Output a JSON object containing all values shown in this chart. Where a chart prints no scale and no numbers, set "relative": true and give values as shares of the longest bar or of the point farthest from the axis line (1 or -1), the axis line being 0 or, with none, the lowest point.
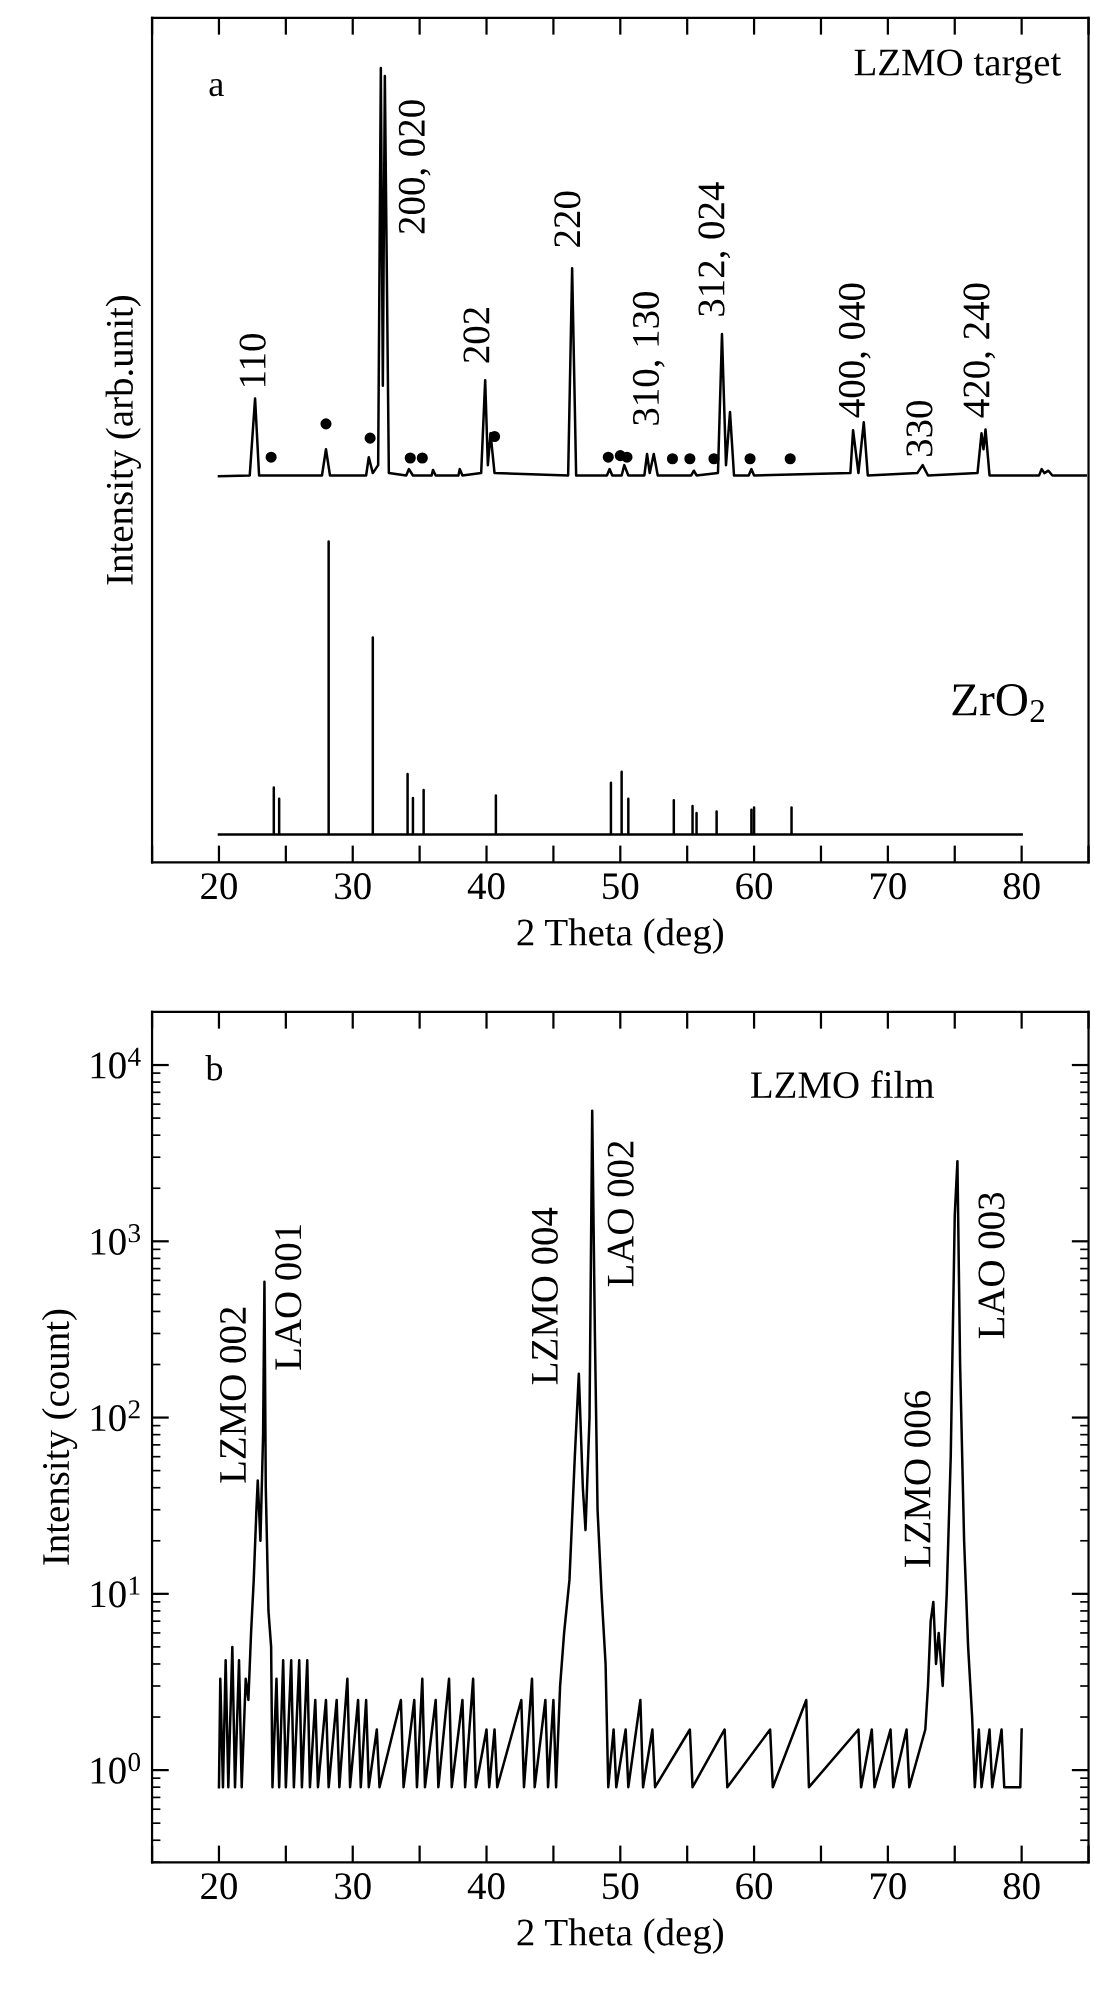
{
  "chart_data": [
    {
      "type": "line",
      "relative": true,
      "xlabel": "2 Theta (deg)",
      "ylabel": "Intensity (arb.unit)",
      "tick_labels": "x",
      "xlim": [
        15,
        85
      ],
      "xticks": [
        {
          "value": 15,
          "label": null
        },
        20,
        {
          "value": 25,
          "label": null
        },
        30,
        {
          "value": 35,
          "label": null
        },
        40,
        {
          "value": 45,
          "label": null
        },
        50,
        {
          "value": 55,
          "label": null
        },
        60,
        {
          "value": 65,
          "label": null
        },
        70,
        {
          "value": 75,
          "label": null
        },
        80,
        {
          "value": 85,
          "label": null
        }
      ],
      "series": [
        {
          "color": "#000000",
          "x": [
            20,
            22.3,
            22.7,
            23.0,
            27.7,
            28.0,
            28.3,
            31.0,
            31.2,
            31.5,
            31.9,
            32.1,
            32.25,
            32.4,
            32.7,
            34.0,
            34.2,
            34.5,
            35.9,
            36.0,
            36.2,
            37.9,
            38.0,
            38.2,
            39.6,
            39.9,
            40.1,
            40.3,
            40.6,
            46.1,
            46.4,
            46.7,
            49.0,
            49.2,
            49.4,
            50.1,
            50.3,
            50.6,
            51.8,
            52.0,
            52.2,
            52.5,
            52.8,
            55.3,
            55.5,
            55.7,
            57.3,
            57.6,
            57.9,
            58.2,
            58.5,
            59.6,
            59.8,
            60.0,
            67.2,
            67.4,
            67.8,
            68.2,
            68.5,
            72.2,
            72.6,
            73.0,
            76.7,
            77.0,
            77.15,
            77.3,
            77.6,
            81.3,
            81.5,
            81.7,
            82.0,
            82.3,
            84.8
          ],
          "values": [
            0.486,
            0.487,
            0.584,
            0.487,
            0.487,
            0.52,
            0.487,
            0.487,
            0.51,
            0.49,
            0.5,
            1.0,
            0.6,
            0.99,
            0.49,
            0.487,
            0.495,
            0.487,
            0.487,
            0.494,
            0.487,
            0.487,
            0.495,
            0.487,
            0.49,
            0.607,
            0.5,
            0.54,
            0.49,
            0.487,
            0.748,
            0.487,
            0.487,
            0.495,
            0.487,
            0.487,
            0.5,
            0.487,
            0.487,
            0.514,
            0.49,
            0.514,
            0.487,
            0.487,
            0.493,
            0.487,
            0.49,
            0.665,
            0.5,
            0.567,
            0.487,
            0.487,
            0.495,
            0.487,
            0.49,
            0.544,
            0.49,
            0.554,
            0.487,
            0.49,
            0.5,
            0.487,
            0.49,
            0.54,
            0.52,
            0.545,
            0.487,
            0.487,
            0.495,
            0.49,
            0.493,
            0.487,
            0.487
          ]
        },
        {
          "type": "scatter",
          "color": "#000000",
          "marker": "circle",
          "x": [
            23.9,
            28.0,
            31.3,
            34.3,
            35.2,
            40.6,
            49.1,
            50.0,
            50.5,
            53.9,
            55.2,
            57.0,
            59.7,
            62.7
          ],
          "values": [
            0.51,
            0.552,
            0.534,
            0.509,
            0.509,
            0.536,
            0.51,
            0.512,
            0.51,
            0.508,
            0.508,
            0.508,
            0.508,
            0.508
          ]
        },
        {
          "color": "#000000",
          "x": [
            20,
            24.1,
            24.1,
            24.1,
            24.5,
            24.5,
            24.5,
            28.2,
            28.2,
            28.2,
            31.5,
            31.5,
            31.5,
            34.1,
            34.1,
            34.1,
            34.5,
            34.5,
            34.5,
            35.3,
            35.3,
            35.3,
            40.7,
            40.7,
            40.7,
            49.3,
            49.3,
            49.3,
            50.1,
            50.1,
            50.1,
            50.6,
            50.6,
            50.6,
            54.0,
            54.0,
            54.0,
            55.4,
            55.4,
            55.4,
            55.7,
            55.7,
            55.7,
            57.2,
            57.2,
            57.2,
            59.8,
            59.8,
            59.8,
            60.0,
            60.0,
            60.0,
            62.8,
            62.8,
            62.8,
            80
          ],
          "values": [
            0.035,
            0.035,
            0.094,
            0.035,
            0.035,
            0.08,
            0.035,
            0.035,
            0.404,
            0.035,
            0.035,
            0.283,
            0.035,
            0.035,
            0.111,
            0.035,
            0.035,
            0.081,
            0.035,
            0.035,
            0.091,
            0.035,
            0.035,
            0.084,
            0.035,
            0.035,
            0.1,
            0.035,
            0.035,
            0.114,
            0.035,
            0.035,
            0.08,
            0.035,
            0.035,
            0.078,
            0.035,
            0.035,
            0.071,
            0.035,
            0.035,
            0.062,
            0.035,
            0.035,
            0.064,
            0.035,
            0.035,
            0.066,
            0.035,
            0.035,
            0.069,
            0.035,
            0.035,
            0.069,
            0.035,
            0.035
          ]
        }
      ],
      "annotations": [
        "a",
        "LZMO target",
        "ZrO$_{2}$",
        "110",
        "200, 020",
        "202",
        "220",
        "310, 130",
        "312, 024",
        "400, 040",
        "330",
        "420, 240"
      ]
    },
    {
      "type": "line",
      "log": "y",
      "xlabel": "2 Theta (deg)",
      "ylabel": "Intensity (count)",
      "xlim": [
        15,
        85
      ],
      "xticks": [
        {
          "value": 15,
          "label": null
        },
        20,
        {
          "value": 25,
          "label": null
        },
        30,
        {
          "value": 35,
          "label": null
        },
        40,
        {
          "value": 45,
          "label": null
        },
        50,
        {
          "value": 55,
          "label": null
        },
        60,
        {
          "value": 65,
          "label": null
        },
        70,
        {
          "value": 75,
          "label": null
        },
        80,
        {
          "value": 85,
          "label": null
        }
      ],
      "ylim": [
        0.3,
        20000
      ],
      "yticks": [
        {
          "value": 1,
          "label": "10$^{0}$"
        },
        {
          "value": 10,
          "label": "10$^{1}$"
        },
        {
          "value": 100,
          "label": "10$^{2}$"
        },
        {
          "value": 1000,
          "label": "10$^{3}$"
        },
        {
          "value": 10000,
          "label": "10$^{4}$"
        }
      ],
      "series": [
        {
          "color": "#000000",
          "x": [
            20.0,
            20.1,
            20.3,
            20.5,
            20.7,
            21.0,
            21.2,
            21.5,
            21.7,
            22.0,
            22.2,
            22.4,
            22.6,
            22.8,
            22.9,
            23.1,
            23.3,
            23.4,
            23.5,
            23.7,
            23.9,
            24.0,
            24.3,
            24.5,
            24.8,
            25.0,
            25.4,
            25.6,
            26.0,
            26.2,
            26.6,
            26.8,
            27.2,
            27.4,
            28.0,
            28.2,
            28.8,
            29.0,
            29.6,
            29.8,
            30.4,
            30.6,
            31.0,
            31.2,
            31.8,
            32.0,
            33.6,
            33.8,
            34.6,
            34.8,
            35.2,
            35.4,
            36.2,
            36.4,
            37.2,
            37.4,
            38.2,
            38.4,
            39.0,
            39.2,
            40.0,
            40.2,
            40.6,
            40.8,
            42.6,
            42.8,
            43.4,
            43.6,
            44.4,
            44.6,
            45.0,
            45.2,
            45.5,
            45.8,
            46.2,
            46.6,
            46.9,
            47.2,
            47.4,
            47.7,
            47.9,
            48.1,
            48.3,
            48.6,
            48.9,
            49.1,
            49.5,
            49.7,
            50.4,
            50.6,
            51.5,
            51.7,
            52.4,
            52.6,
            55.2,
            55.4,
            57.8,
            58.0,
            61.2,
            61.4,
            63.9,
            64.1,
            67.8,
            68.0,
            68.8,
            69.0,
            70.2,
            70.4,
            71.4,
            71.6,
            72.8,
            73.0,
            73.2,
            73.4,
            73.6,
            73.8,
            74.1,
            74.4,
            74.7,
            75.0,
            75.2,
            75.4,
            75.7,
            76.0,
            76.3,
            76.5,
            76.8,
            77.0,
            77.6,
            77.8,
            78.5,
            78.7,
            79.9,
            80.0
          ],
          "values": [
            0.8,
            3.3,
            0.8,
            4.2,
            0.8,
            5.0,
            0.8,
            4.2,
            0.8,
            3.3,
            2.5,
            6,
            12,
            30,
            44,
            20,
            80,
            590,
            40,
            8,
            5,
            0.8,
            3.3,
            0.8,
            4.2,
            0.8,
            4.2,
            0.8,
            4.2,
            0.8,
            4.2,
            0.8,
            2.5,
            0.8,
            2.5,
            0.8,
            2.5,
            0.8,
            3.3,
            0.8,
            2.5,
            0.8,
            2.5,
            0.8,
            1.7,
            0.8,
            2.5,
            0.8,
            2.5,
            0.8,
            3.3,
            0.8,
            2.5,
            0.8,
            3.3,
            0.8,
            2.5,
            0.8,
            3.3,
            0.8,
            1.7,
            0.8,
            1.7,
            0.8,
            2.5,
            0.8,
            3.3,
            0.8,
            2.5,
            0.8,
            2.5,
            0.8,
            3,
            6,
            12,
            60,
            177,
            40,
            23,
            100,
            5500,
            300,
            30,
            10,
            4,
            0.8,
            1.7,
            0.8,
            1.7,
            0.8,
            2.5,
            0.8,
            1.7,
            0.8,
            1.7,
            0.8,
            1.7,
            0.8,
            1.7,
            0.8,
            2.5,
            0.8,
            1.7,
            0.8,
            1.7,
            0.8,
            1.7,
            0.8,
            1.7,
            0.8,
            1.7,
            3,
            7,
            9,
            4,
            6,
            3,
            10,
            60,
            1400,
            2850,
            200,
            20,
            5,
            2,
            0.8,
            1.7,
            0.8,
            1.7,
            0.8,
            1.7,
            0.8,
            0.8,
            1.7
          ]
        }
      ],
      "annotations": [
        "b",
        "LZMO film",
        "LZMO 002",
        "LAO 001",
        "LZMO 004",
        "LAO 002",
        "LZMO 006",
        "LAO 003"
      ]
    }
  ]
}
